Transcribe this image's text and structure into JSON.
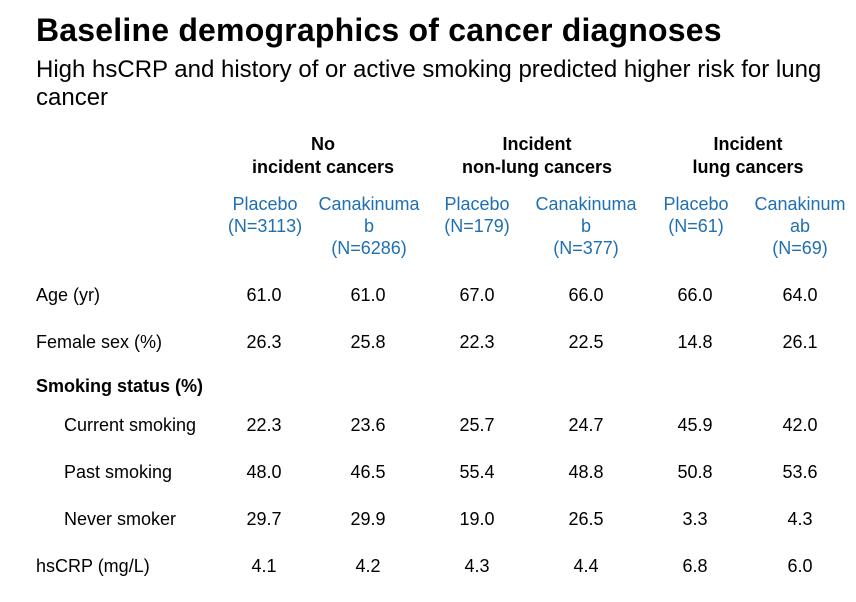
{
  "title": "Baseline demographics of cancer diagnoses",
  "subtitle": "High hsCRP and history of or active smoking predicted higher risk for lung cancer",
  "groups": [
    {
      "line1": "No",
      "line2": "incident cancers"
    },
    {
      "line1": "Incident",
      "line2": "non-lung cancers"
    },
    {
      "line1": "Incident",
      "line2": "lung cancers"
    }
  ],
  "columns": [
    {
      "lines": [
        "Placebo",
        "(N=3113)"
      ]
    },
    {
      "lines": [
        "Canakinuma",
        "b",
        "(N=6286)"
      ]
    },
    {
      "lines": [
        "Placebo",
        "(N=179)"
      ]
    },
    {
      "lines": [
        "Canakinuma",
        "b",
        "(N=377)"
      ]
    },
    {
      "lines": [
        "Placebo",
        "(N=61)"
      ]
    },
    {
      "lines": [
        "Canakinum",
        "ab",
        "(N=69)"
      ]
    }
  ],
  "rows": [
    {
      "label": "Age (yr)",
      "values": [
        "61.0",
        "61.0",
        "67.0",
        "66.0",
        "66.0",
        "64.0"
      ]
    },
    {
      "label": "Female sex (%)",
      "values": [
        "26.3",
        "25.8",
        "22.3",
        "22.5",
        "14.8",
        "26.1"
      ]
    },
    {
      "label": "Smoking status (%)",
      "values": []
    },
    {
      "label": "Current smoking",
      "values": [
        "22.3",
        "23.6",
        "25.7",
        "24.7",
        "45.9",
        "42.0"
      ]
    },
    {
      "label": "Past smoking",
      "values": [
        "48.0",
        "46.5",
        "55.4",
        "48.8",
        "50.8",
        "53.6"
      ]
    },
    {
      "label": "Never smoker",
      "values": [
        "29.7",
        "29.9",
        "19.0",
        "26.5",
        "3.3",
        "4.3"
      ]
    },
    {
      "label": "hsCRP (mg/L)",
      "values": [
        "4.1",
        "4.2",
        "4.3",
        "4.4",
        "6.8",
        "6.0"
      ]
    }
  ],
  "colors": {
    "column_header": "#1f6fb2"
  }
}
